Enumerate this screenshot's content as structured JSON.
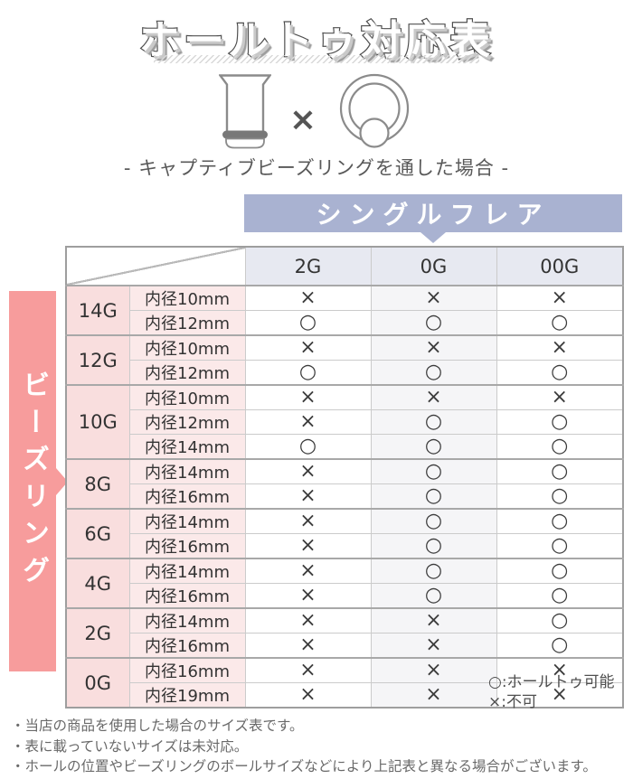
{
  "title": "ホールトゥ対応表",
  "illustration": {
    "separator": "×"
  },
  "subtitle": "- キャプティブビーズリングを通した場合 -",
  "column_banner": {
    "label": "シングルフレア"
  },
  "row_banner": {
    "label": "ビーズリング"
  },
  "table": {
    "column_headers": [
      "2G",
      "0G",
      "00G"
    ],
    "groups": [
      {
        "gauge": "14G",
        "rows": [
          {
            "size": "内径10mm",
            "values": [
              "×",
              "×",
              "×"
            ]
          },
          {
            "size": "内径12mm",
            "values": [
              "○",
              "○",
              "○"
            ]
          }
        ]
      },
      {
        "gauge": "12G",
        "rows": [
          {
            "size": "内径10mm",
            "values": [
              "×",
              "×",
              "×"
            ]
          },
          {
            "size": "内径12mm",
            "values": [
              "○",
              "○",
              "○"
            ]
          }
        ]
      },
      {
        "gauge": "10G",
        "rows": [
          {
            "size": "内径10mm",
            "values": [
              "×",
              "×",
              "×"
            ]
          },
          {
            "size": "内径12mm",
            "values": [
              "×",
              "○",
              "○"
            ]
          },
          {
            "size": "内径14mm",
            "values": [
              "○",
              "○",
              "○"
            ]
          }
        ]
      },
      {
        "gauge": "8G",
        "rows": [
          {
            "size": "内径14mm",
            "values": [
              "×",
              "○",
              "○"
            ]
          },
          {
            "size": "内径16mm",
            "values": [
              "×",
              "○",
              "○"
            ]
          }
        ]
      },
      {
        "gauge": "6G",
        "rows": [
          {
            "size": "内径14mm",
            "values": [
              "×",
              "○",
              "○"
            ]
          },
          {
            "size": "内径16mm",
            "values": [
              "×",
              "○",
              "○"
            ]
          }
        ]
      },
      {
        "gauge": "4G",
        "rows": [
          {
            "size": "内径14mm",
            "values": [
              "×",
              "○",
              "○"
            ]
          },
          {
            "size": "内径16mm",
            "values": [
              "×",
              "○",
              "○"
            ]
          }
        ]
      },
      {
        "gauge": "2G",
        "rows": [
          {
            "size": "内径14mm",
            "values": [
              "×",
              "×",
              "○"
            ]
          },
          {
            "size": "内径16mm",
            "values": [
              "×",
              "×",
              "○"
            ]
          }
        ]
      },
      {
        "gauge": "0G",
        "rows": [
          {
            "size": "内径16mm",
            "values": [
              "×",
              "×",
              "×"
            ]
          },
          {
            "size": "内径19mm",
            "values": [
              "×",
              "×",
              "×"
            ]
          }
        ]
      }
    ]
  },
  "legend": {
    "possible": "○:ホールトゥ可能",
    "impossible": "×:不可"
  },
  "notes": [
    "・当店の商品を使用した場合のサイズ表です。",
    "・表に載っていないサイズは未対応。",
    "・ホールの位置やビーズリングのボールサイズなどにより上記表と異なる場合がございます。"
  ],
  "colors": {
    "accent_pink": "#f79c9c",
    "accent_lavender": "#a9b2d1",
    "header_cell_bg": "#e7e9f1",
    "gauge_cell_bg": "#f9dede",
    "size_cell_bg": "#fbe9e9"
  }
}
